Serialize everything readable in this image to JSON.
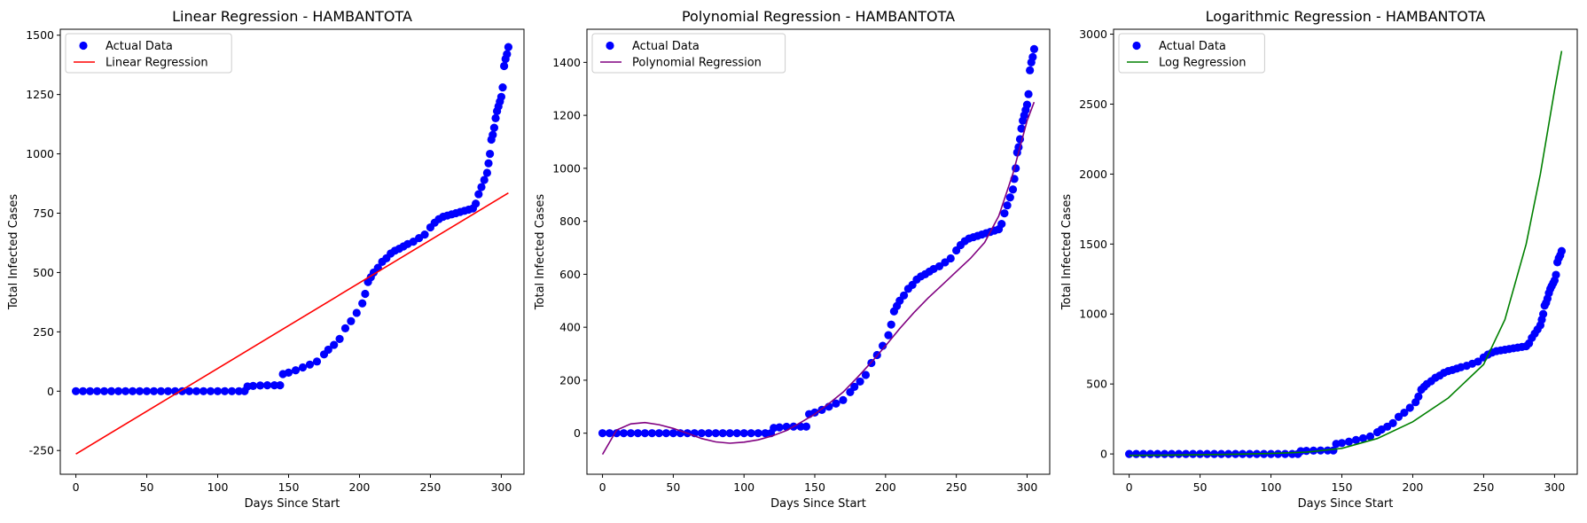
{
  "chart_data": [
    {
      "type": "scatter",
      "title": "Linear Regression - HAMBANTOTA",
      "xlabel": "Days Since Start",
      "ylabel": "Total Infected Cases",
      "xlim": [
        -11,
        316
      ],
      "ylim": [
        -350,
        1525
      ],
      "xticks": [
        0,
        50,
        100,
        150,
        200,
        250,
        300
      ],
      "yticks": [
        -250,
        0,
        250,
        500,
        750,
        1000,
        1250,
        1500
      ],
      "grid": false,
      "legend_position": "top-left",
      "series": [
        {
          "name": "Actual Data",
          "kind": "scatter",
          "color": "#0000ff"
        },
        {
          "name": "Linear Regression",
          "kind": "line",
          "color": "#ff0000",
          "x": [
            0,
            305
          ],
          "y": [
            -265,
            835
          ]
        }
      ]
    },
    {
      "type": "scatter",
      "title": "Polynomial Regression - HAMBANTOTA",
      "xlabel": "Days Since Start",
      "ylabel": "Total Infected Cases",
      "xlim": [
        -11,
        316
      ],
      "ylim": [
        -155,
        1525
      ],
      "xticks": [
        0,
        50,
        100,
        150,
        200,
        250,
        300
      ],
      "yticks": [
        0,
        200,
        400,
        600,
        800,
        1000,
        1200,
        1400
      ],
      "grid": false,
      "legend_position": "top-left",
      "series": [
        {
          "name": "Actual Data",
          "kind": "scatter",
          "color": "#0000ff"
        },
        {
          "name": "Polynomial Regression",
          "kind": "line",
          "color": "#800080",
          "x": [
            0,
            10,
            20,
            30,
            40,
            50,
            60,
            70,
            80,
            90,
            100,
            110,
            120,
            130,
            140,
            150,
            160,
            170,
            180,
            190,
            200,
            210,
            220,
            230,
            240,
            250,
            260,
            270,
            280,
            290,
            300,
            305
          ],
          "y": [
            -80,
            12,
            35,
            40,
            32,
            18,
            0,
            -20,
            -33,
            -38,
            -34,
            -25,
            -10,
            10,
            40,
            72,
            112,
            155,
            210,
            268,
            330,
            395,
            455,
            510,
            560,
            610,
            660,
            720,
            820,
            980,
            1180,
            1250
          ]
        }
      ]
    },
    {
      "type": "scatter",
      "title": "Logarithmic Regression - HAMBANTOTA",
      "xlabel": "Days Since Start",
      "ylabel": "Total Infected Cases",
      "xlim": [
        -11,
        316
      ],
      "ylim": [
        -145,
        3035
      ],
      "xticks": [
        0,
        50,
        100,
        150,
        200,
        250,
        300
      ],
      "yticks": [
        0,
        500,
        1000,
        1500,
        2000,
        2500,
        3000
      ],
      "grid": false,
      "legend_position": "top-left",
      "series": [
        {
          "name": "Actual Data",
          "kind": "scatter",
          "color": "#0000ff"
        },
        {
          "name": "Log Regression",
          "kind": "line",
          "color": "#008000",
          "x": [
            0,
            25,
            50,
            75,
            100,
            125,
            150,
            175,
            200,
            225,
            250,
            265,
            280,
            290,
            300,
            305
          ],
          "y": [
            -10,
            -8,
            -5,
            -2,
            3,
            13,
            40,
            110,
            230,
            400,
            640,
            960,
            1500,
            2000,
            2600,
            2880
          ]
        }
      ]
    }
  ],
  "actual_data": {
    "x": [
      0,
      5,
      10,
      15,
      20,
      25,
      30,
      35,
      40,
      45,
      50,
      55,
      60,
      65,
      70,
      75,
      80,
      85,
      90,
      95,
      100,
      105,
      110,
      115,
      119,
      121,
      125,
      130,
      135,
      140,
      144,
      146,
      150,
      155,
      160,
      165,
      170,
      175,
      178,
      182,
      186,
      190,
      194,
      198,
      202,
      204,
      206,
      208,
      210,
      213,
      216,
      219,
      222,
      225,
      228,
      231,
      234,
      238,
      242,
      246,
      250,
      253,
      256,
      259,
      262,
      265,
      268,
      271,
      274,
      277,
      280,
      282,
      284,
      286,
      288,
      290,
      291,
      292,
      293,
      294,
      295,
      296,
      297,
      298,
      299,
      300,
      301,
      302,
      303,
      304,
      305
    ],
    "y": [
      0,
      0,
      0,
      0,
      0,
      0,
      0,
      0,
      0,
      0,
      0,
      0,
      0,
      0,
      0,
      0,
      0,
      0,
      0,
      0,
      0,
      0,
      0,
      0,
      0,
      20,
      22,
      24,
      25,
      25,
      25,
      72,
      78,
      88,
      100,
      112,
      125,
      155,
      175,
      195,
      220,
      265,
      295,
      330,
      370,
      410,
      460,
      480,
      500,
      520,
      545,
      560,
      580,
      592,
      600,
      610,
      620,
      630,
      645,
      660,
      690,
      710,
      725,
      735,
      740,
      745,
      750,
      755,
      760,
      765,
      770,
      790,
      830,
      860,
      890,
      920,
      960,
      1000,
      1060,
      1080,
      1110,
      1150,
      1180,
      1200,
      1220,
      1240,
      1280,
      1370,
      1400,
      1420,
      1450
    ]
  }
}
